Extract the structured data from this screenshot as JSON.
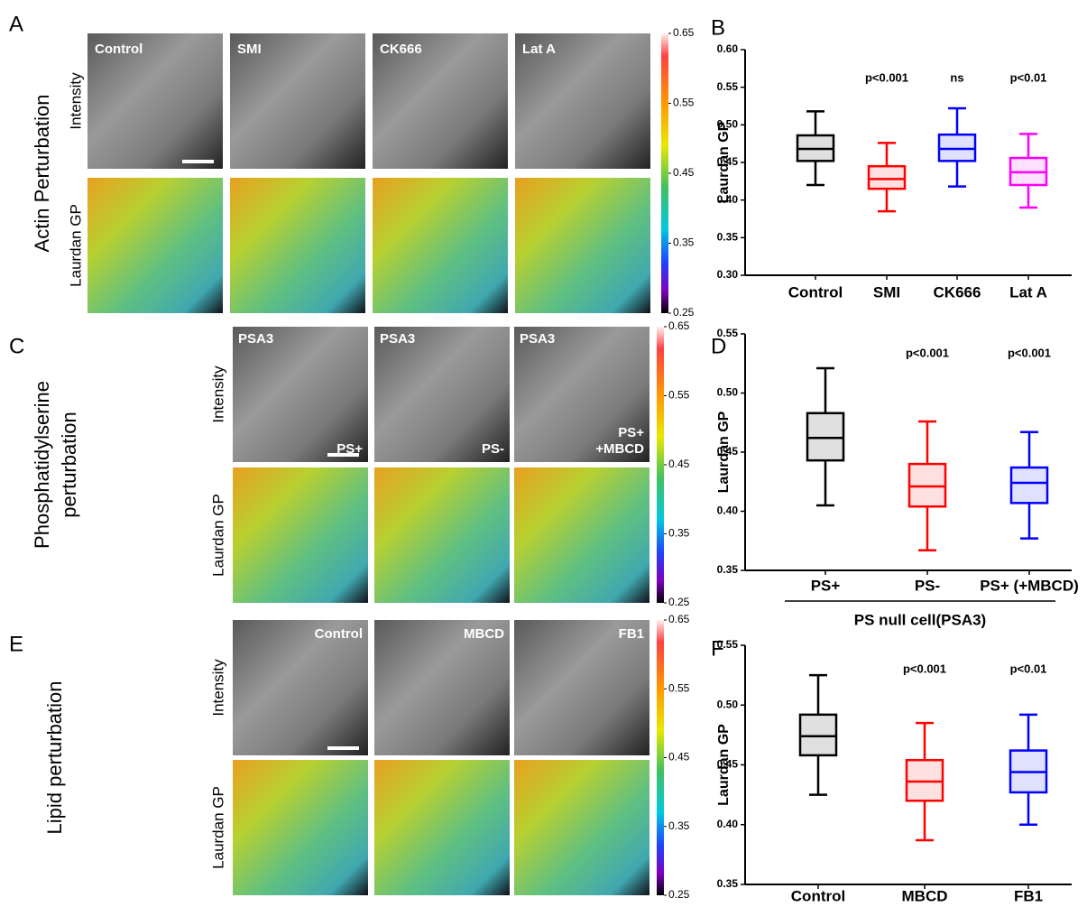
{
  "panels": [
    {
      "letter": "A",
      "group_title": [
        "Actin Perturbation"
      ],
      "row_labels": [
        "Intensity",
        "Laurdan GP"
      ],
      "conditions": [
        [
          "Control"
        ],
        [
          "SMI"
        ],
        [
          "CK666"
        ],
        [
          "Lat A"
        ]
      ],
      "colorbar_ticks": [
        0.65,
        0.55,
        0.45,
        0.35,
        0.25
      ]
    },
    {
      "letter": "C",
      "group_title": [
        "Phosphatidylserine",
        "perturbation"
      ],
      "row_labels": [
        "Intensity",
        "Laurdan GP"
      ],
      "cell_line": [
        "PSA3",
        "PSA3",
        "PSA3"
      ],
      "conditions": [
        [
          "PS+"
        ],
        [
          "PS-"
        ],
        [
          "PS+",
          "+MBCD"
        ]
      ],
      "colorbar_ticks": [
        0.65,
        0.55,
        0.45,
        0.35,
        0.25
      ]
    },
    {
      "letter": "E",
      "group_title": [
        "Lipid perturbation"
      ],
      "row_labels": [
        "Intensity",
        "Laurdan GP"
      ],
      "conditions": [
        [
          "Control"
        ],
        [
          "MBCD"
        ],
        [
          "FB1"
        ]
      ],
      "colorbar_ticks": [
        0.65,
        0.55,
        0.45,
        0.35,
        0.25
      ]
    }
  ],
  "chart_data": [
    {
      "type": "box",
      "letter": "B",
      "ylabel": "Laurdan GP",
      "categories": [
        "Control",
        "SMI",
        "CK666",
        "Lat A"
      ],
      "annotations": [
        null,
        "p<0.001",
        "ns",
        "p<0.01"
      ],
      "boxes": [
        {
          "color": "#000000",
          "whislo": 0.42,
          "q1": 0.452,
          "med": 0.468,
          "q3": 0.486,
          "whishi": 0.518
        },
        {
          "color": "#ff0000",
          "whislo": 0.385,
          "q1": 0.415,
          "med": 0.428,
          "q3": 0.445,
          "whishi": 0.476
        },
        {
          "color": "#0000ff",
          "whislo": 0.418,
          "q1": 0.452,
          "med": 0.468,
          "q3": 0.487,
          "whishi": 0.522
        },
        {
          "color": "#ff00ff",
          "whislo": 0.39,
          "q1": 0.42,
          "med": 0.437,
          "q3": 0.456,
          "whishi": 0.488
        }
      ],
      "ylim": [
        0.3,
        0.6
      ],
      "yticks": [
        {
          "value": 0.3,
          "label": "0.30"
        },
        0.35,
        {
          "value": 0.4,
          "label": "0.40"
        },
        0.45,
        {
          "value": 0.5,
          "label": "0.50"
        },
        0.55,
        {
          "value": 0.6,
          "label": "0.60"
        }
      ]
    },
    {
      "type": "box",
      "letter": "D",
      "ylabel": "Laurdan GP",
      "categories": [
        "PS+",
        "PS-",
        "PS+ (+MBCD)"
      ],
      "annotations": [
        null,
        "p<0.001",
        "p<0.001"
      ],
      "group_label": "PS null cell(PSA3)",
      "boxes": [
        {
          "color": "#000000",
          "whislo": 0.405,
          "q1": 0.443,
          "med": 0.462,
          "q3": 0.483,
          "whishi": 0.521
        },
        {
          "color": "#ff0000",
          "whislo": 0.367,
          "q1": 0.404,
          "med": 0.421,
          "q3": 0.44,
          "whishi": 0.476
        },
        {
          "color": "#0000ff",
          "whislo": 0.377,
          "q1": 0.407,
          "med": 0.424,
          "q3": 0.437,
          "whishi": 0.467
        }
      ],
      "ylim": [
        0.35,
        0.55
      ],
      "yticks": [
        0.35,
        {
          "value": 0.4,
          "label": "0.40"
        },
        0.45,
        {
          "value": 0.5,
          "label": "0.50"
        },
        0.55
      ]
    },
    {
      "type": "box",
      "letter": "F",
      "ylabel": "Laurdan GP",
      "categories": [
        "Control",
        "MBCD",
        "FB1"
      ],
      "annotations": [
        null,
        "p<0.001",
        "p<0.01"
      ],
      "boxes": [
        {
          "color": "#000000",
          "whislo": 0.425,
          "q1": 0.458,
          "med": 0.474,
          "q3": 0.492,
          "whishi": 0.525
        },
        {
          "color": "#ff0000",
          "whislo": 0.387,
          "q1": 0.42,
          "med": 0.436,
          "q3": 0.454,
          "whishi": 0.485
        },
        {
          "color": "#0000ff",
          "whislo": 0.4,
          "q1": 0.427,
          "med": 0.444,
          "q3": 0.462,
          "whishi": 0.492
        }
      ],
      "ylim": [
        0.35,
        0.55
      ],
      "yticks": [
        0.35,
        {
          "value": 0.4,
          "label": "0.40"
        },
        0.45,
        {
          "value": 0.5,
          "label": "0.50"
        },
        0.55
      ]
    }
  ]
}
